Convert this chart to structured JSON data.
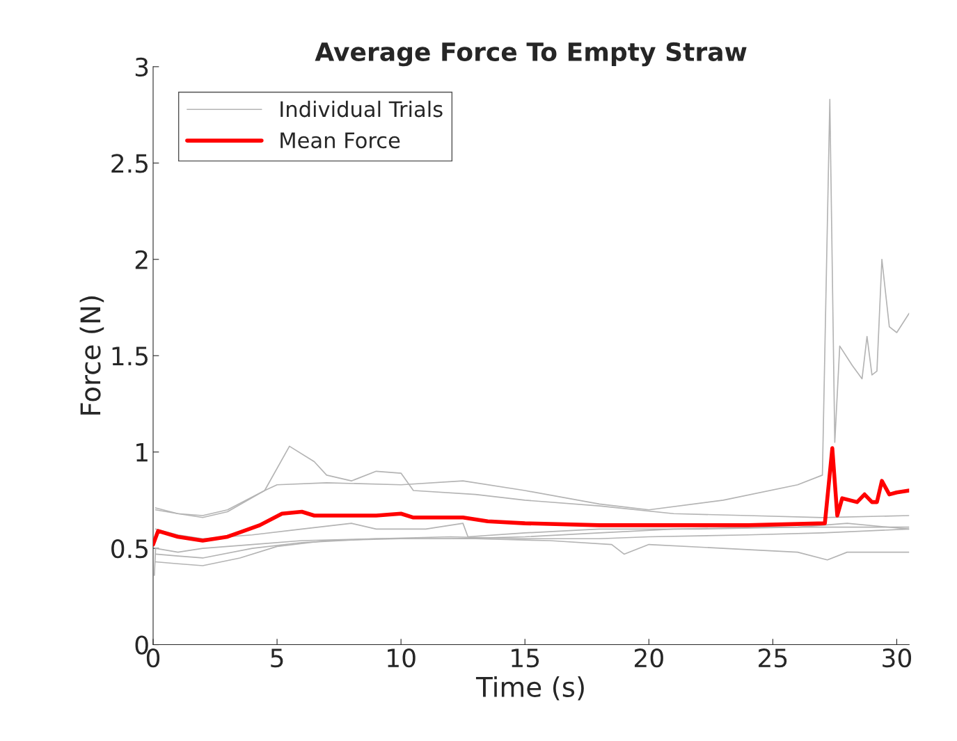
{
  "chart_data": {
    "type": "line",
    "title": "Average Force To Empty Straw",
    "xlabel": "Time (s)",
    "ylabel": "Force (N)",
    "xlim": [
      0,
      30.5
    ],
    "ylim": [
      0,
      3
    ],
    "xticks": [
      0,
      5,
      10,
      15,
      20,
      25,
      30
    ],
    "yticks": [
      0,
      0.5,
      1,
      1.5,
      2,
      2.5,
      3
    ],
    "grid": false,
    "legend": "top left",
    "marker": "none",
    "line_style": "solid",
    "series": [
      {
        "name": "Individual Trials",
        "color": "#b4b4b4",
        "x": [
          0.1,
          1,
          2,
          3,
          4.5,
          5,
          7,
          10,
          12.5,
          15,
          18,
          20,
          23,
          26,
          27,
          27.3,
          27.5,
          27.7,
          28.2,
          28.6,
          28.8,
          29,
          29.2,
          29.4,
          29.7,
          30,
          30.5
        ],
        "values": [
          0.71,
          0.68,
          0.67,
          0.7,
          0.8,
          0.83,
          0.84,
          0.83,
          0.85,
          0.8,
          0.73,
          0.7,
          0.75,
          0.83,
          0.88,
          2.83,
          1.05,
          1.55,
          1.45,
          1.38,
          1.6,
          1.4,
          1.42,
          2.0,
          1.65,
          1.62,
          1.72
        ]
      },
      {
        "color": "#b4b4b4",
        "x": [
          0.1,
          1,
          2,
          3,
          4.5,
          5.5,
          6.5,
          7,
          8,
          9,
          10,
          10.5,
          13,
          15,
          18,
          21,
          24,
          27,
          30.5
        ],
        "values": [
          0.7,
          0.68,
          0.66,
          0.69,
          0.8,
          1.03,
          0.95,
          0.88,
          0.85,
          0.9,
          0.89,
          0.8,
          0.78,
          0.75,
          0.72,
          0.68,
          0.67,
          0.66,
          0.67
        ]
      },
      {
        "color": "#b4b4b4",
        "x": [
          0.1,
          1,
          2,
          4,
          6,
          8,
          9,
          11,
          12.5,
          12.7,
          15,
          18,
          22,
          26,
          28,
          30.5
        ],
        "values": [
          0.6,
          0.57,
          0.55,
          0.57,
          0.6,
          0.63,
          0.6,
          0.6,
          0.63,
          0.56,
          0.58,
          0.6,
          0.6,
          0.61,
          0.63,
          0.6
        ]
      },
      {
        "color": "#b4b4b4",
        "x": [
          0.1,
          1,
          2,
          4,
          6,
          9,
          12,
          15,
          18,
          20,
          24,
          27,
          30.5
        ],
        "values": [
          0.47,
          0.46,
          0.45,
          0.5,
          0.53,
          0.55,
          0.56,
          0.55,
          0.55,
          0.56,
          0.57,
          0.58,
          0.6
        ]
      },
      {
        "color": "#b4b4b4",
        "x": [
          0.1,
          1,
          2,
          3.5,
          5,
          7,
          10,
          13,
          16,
          18.5,
          19,
          20,
          23,
          26,
          27.2,
          28,
          30.5
        ],
        "values": [
          0.43,
          0.42,
          0.41,
          0.45,
          0.51,
          0.54,
          0.55,
          0.55,
          0.54,
          0.52,
          0.47,
          0.52,
          0.5,
          0.48,
          0.44,
          0.48,
          0.48
        ]
      },
      {
        "color": "#b4b4b4",
        "x": [
          0.05,
          0.1,
          1,
          2,
          4,
          6,
          9,
          12,
          15,
          18,
          21,
          25,
          28,
          30.5
        ],
        "values": [
          0.36,
          0.5,
          0.48,
          0.5,
          0.52,
          0.54,
          0.55,
          0.55,
          0.56,
          0.58,
          0.6,
          0.61,
          0.61,
          0.61
        ]
      },
      {
        "name": "Mean Force",
        "color": "#ff0000",
        "x": [
          0,
          0.2,
          1,
          2,
          3,
          4.3,
          5.2,
          6,
          6.5,
          9,
          10,
          10.5,
          12.5,
          13.5,
          15,
          18,
          20,
          24,
          27.1,
          27.4,
          27.6,
          27.8,
          28.4,
          28.7,
          29,
          29.2,
          29.4,
          29.7,
          30,
          30.5
        ],
        "values": [
          0.52,
          0.59,
          0.56,
          0.54,
          0.56,
          0.62,
          0.68,
          0.69,
          0.67,
          0.67,
          0.68,
          0.66,
          0.66,
          0.64,
          0.63,
          0.62,
          0.62,
          0.62,
          0.63,
          1.02,
          0.67,
          0.76,
          0.74,
          0.78,
          0.74,
          0.74,
          0.85,
          0.78,
          0.79,
          0.8
        ]
      }
    ]
  }
}
